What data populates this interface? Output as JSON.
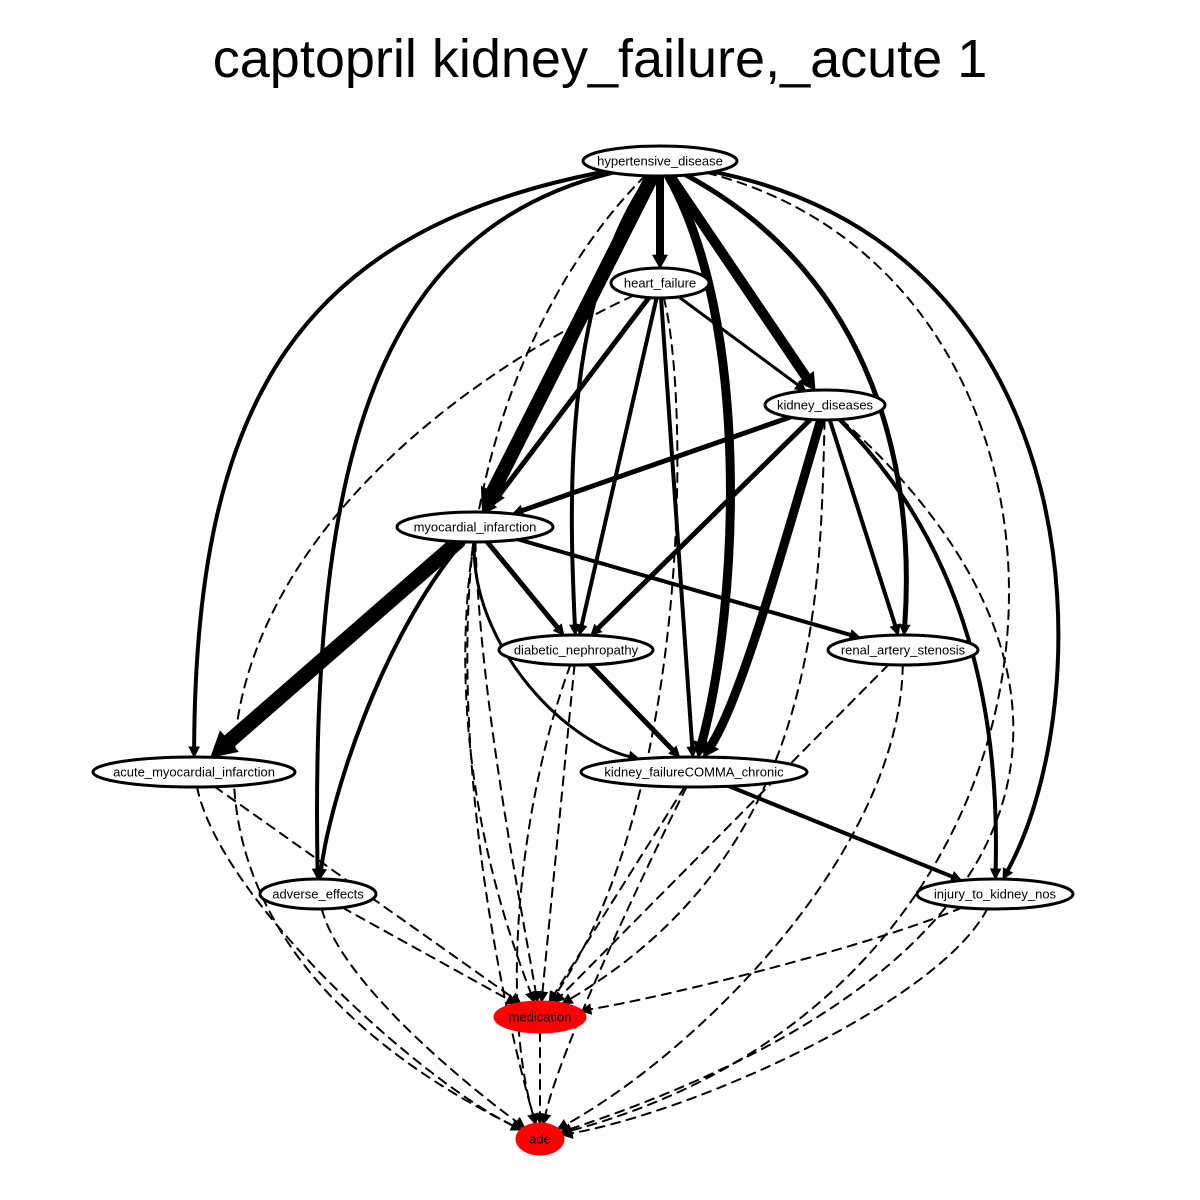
{
  "title": "captopril kidney_failure,_acute 1",
  "colors": {
    "highlight": "#ff0000",
    "stroke": "#000000",
    "background": "#ffffff"
  },
  "nodes": [
    {
      "id": "hypertensive_disease",
      "label": "hypertensive_disease",
      "highlight": false
    },
    {
      "id": "heart_failure",
      "label": "heart_failure",
      "highlight": false
    },
    {
      "id": "kidney_diseases",
      "label": "kidney_diseases",
      "highlight": false
    },
    {
      "id": "myocardial_infarction",
      "label": "myocardial_infarction",
      "highlight": false
    },
    {
      "id": "diabetic_nephropathy",
      "label": "diabetic_nephropathy",
      "highlight": false
    },
    {
      "id": "renal_artery_stenosis",
      "label": "renal_artery_stenosis",
      "highlight": false
    },
    {
      "id": "acute_myocardial_infarction",
      "label": "acute_myocardial_infarction",
      "highlight": false
    },
    {
      "id": "kidney_failure_chronic",
      "label": "kidney_failureCOMMA_chronic",
      "highlight": false
    },
    {
      "id": "adverse_effects",
      "label": "adverse_effects",
      "highlight": false
    },
    {
      "id": "injury_to_kidney_nos",
      "label": "injury_to_kidney_nos",
      "highlight": false
    },
    {
      "id": "medication",
      "label": "medication",
      "highlight": true
    },
    {
      "id": "ade",
      "label": "ade",
      "highlight": true
    }
  ],
  "edges": [
    {
      "from": "hypertensive_disease",
      "to": "heart_failure",
      "style": "solid",
      "weight": 8
    },
    {
      "from": "hypertensive_disease",
      "to": "kidney_diseases",
      "style": "solid",
      "weight": 10
    },
    {
      "from": "hypertensive_disease",
      "to": "myocardial_infarction",
      "style": "solid",
      "weight": 14
    },
    {
      "from": "hypertensive_disease",
      "to": "acute_myocardial_infarction",
      "style": "solid",
      "weight": 4
    },
    {
      "from": "hypertensive_disease",
      "to": "adverse_effects",
      "style": "solid",
      "weight": 4
    },
    {
      "from": "hypertensive_disease",
      "to": "diabetic_nephropathy",
      "style": "solid",
      "weight": 4
    },
    {
      "from": "hypertensive_disease",
      "to": "kidney_failure_chronic",
      "style": "solid",
      "weight": 9
    },
    {
      "from": "hypertensive_disease",
      "to": "renal_artery_stenosis",
      "style": "solid",
      "weight": 5
    },
    {
      "from": "hypertensive_disease",
      "to": "injury_to_kidney_nos",
      "style": "solid",
      "weight": 4
    },
    {
      "from": "hypertensive_disease",
      "to": "medication",
      "style": "dashed",
      "weight": 2
    },
    {
      "from": "hypertensive_disease",
      "to": "ade",
      "style": "dashed",
      "weight": 2
    },
    {
      "from": "heart_failure",
      "to": "kidney_diseases",
      "style": "solid",
      "weight": 3
    },
    {
      "from": "heart_failure",
      "to": "myocardial_infarction",
      "style": "solid",
      "weight": 5
    },
    {
      "from": "heart_failure",
      "to": "diabetic_nephropathy",
      "style": "solid",
      "weight": 4
    },
    {
      "from": "heart_failure",
      "to": "kidney_failure_chronic",
      "style": "solid",
      "weight": 4
    },
    {
      "from": "heart_failure",
      "to": "medication",
      "style": "dashed",
      "weight": 2
    },
    {
      "from": "heart_failure",
      "to": "ade",
      "style": "dashed",
      "weight": 2
    },
    {
      "from": "kidney_diseases",
      "to": "myocardial_infarction",
      "style": "solid",
      "weight": 5
    },
    {
      "from": "kidney_diseases",
      "to": "diabetic_nephropathy",
      "style": "solid",
      "weight": 5
    },
    {
      "from": "kidney_diseases",
      "to": "kidney_failure_chronic",
      "style": "solid",
      "weight": 9
    },
    {
      "from": "kidney_diseases",
      "to": "renal_artery_stenosis",
      "style": "solid",
      "weight": 4
    },
    {
      "from": "kidney_diseases",
      "to": "injury_to_kidney_nos",
      "style": "solid",
      "weight": 4
    },
    {
      "from": "kidney_diseases",
      "to": "medication",
      "style": "dashed",
      "weight": 2
    },
    {
      "from": "kidney_diseases",
      "to": "ade",
      "style": "dashed",
      "weight": 2
    },
    {
      "from": "myocardial_infarction",
      "to": "acute_myocardial_infarction",
      "style": "solid",
      "weight": 15
    },
    {
      "from": "myocardial_infarction",
      "to": "diabetic_nephropathy",
      "style": "solid",
      "weight": 5
    },
    {
      "from": "myocardial_infarction",
      "to": "renal_artery_stenosis",
      "style": "solid",
      "weight": 4
    },
    {
      "from": "myocardial_infarction",
      "to": "kidney_failure_chronic",
      "style": "solid",
      "weight": 3
    },
    {
      "from": "myocardial_infarction",
      "to": "adverse_effects",
      "style": "solid",
      "weight": 4
    },
    {
      "from": "myocardial_infarction",
      "to": "medication",
      "style": "dashed",
      "weight": 2
    },
    {
      "from": "myocardial_infarction",
      "to": "ade",
      "style": "dashed",
      "weight": 2
    },
    {
      "from": "diabetic_nephropathy",
      "to": "kidney_failure_chronic",
      "style": "solid",
      "weight": 5
    },
    {
      "from": "diabetic_nephropathy",
      "to": "medication",
      "style": "dashed",
      "weight": 2
    },
    {
      "from": "diabetic_nephropathy",
      "to": "ade",
      "style": "dashed",
      "weight": 2
    },
    {
      "from": "renal_artery_stenosis",
      "to": "medication",
      "style": "dashed",
      "weight": 2
    },
    {
      "from": "renal_artery_stenosis",
      "to": "ade",
      "style": "dashed",
      "weight": 2
    },
    {
      "from": "acute_myocardial_infarction",
      "to": "medication",
      "style": "dashed",
      "weight": 2
    },
    {
      "from": "acute_myocardial_infarction",
      "to": "ade",
      "style": "dashed",
      "weight": 2
    },
    {
      "from": "kidney_failure_chronic",
      "to": "injury_to_kidney_nos",
      "style": "solid",
      "weight": 4
    },
    {
      "from": "kidney_failure_chronic",
      "to": "medication",
      "style": "dashed",
      "weight": 2
    },
    {
      "from": "kidney_failure_chronic",
      "to": "ade",
      "style": "dashed",
      "weight": 2
    },
    {
      "from": "adverse_effects",
      "to": "medication",
      "style": "dashed",
      "weight": 2
    },
    {
      "from": "adverse_effects",
      "to": "ade",
      "style": "dashed",
      "weight": 2
    },
    {
      "from": "injury_to_kidney_nos",
      "to": "medication",
      "style": "dashed",
      "weight": 2
    },
    {
      "from": "injury_to_kidney_nos",
      "to": "ade",
      "style": "dashed",
      "weight": 2
    },
    {
      "from": "medication",
      "to": "ade",
      "style": "dashed",
      "weight": 2
    }
  ]
}
